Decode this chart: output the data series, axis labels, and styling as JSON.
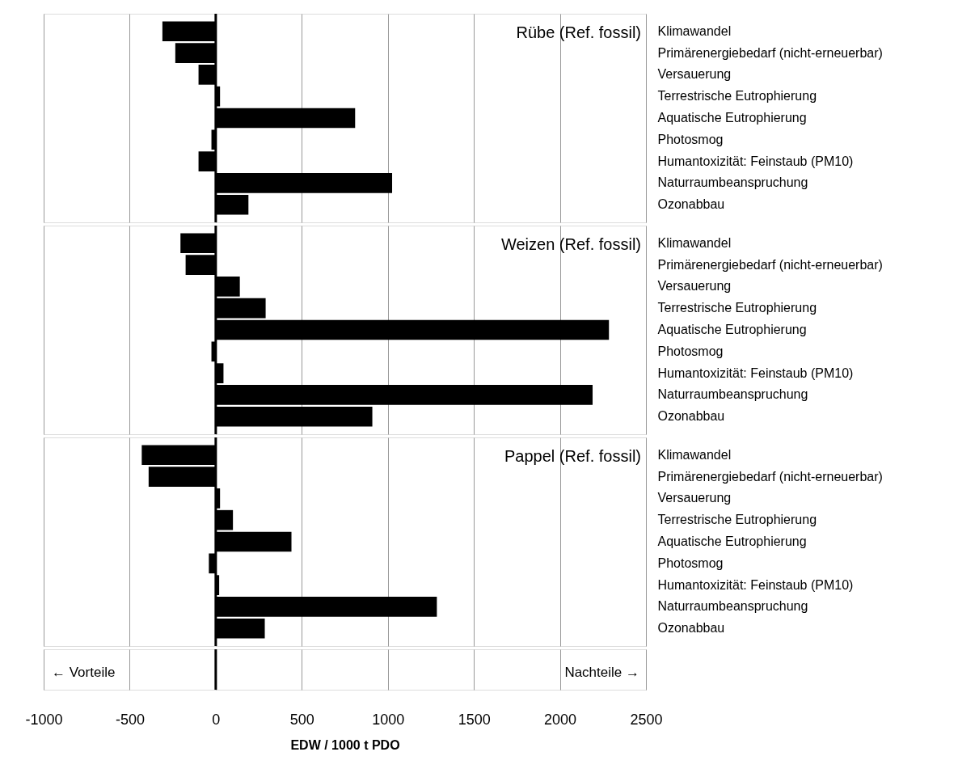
{
  "chart_data": [
    {
      "type": "bar",
      "orientation": "horizontal",
      "title": "Rübe (Ref. fossil)",
      "categories": [
        "Klimawandel",
        "Primärenergiebedarf (nicht-erneuerbar)",
        "Versauerung",
        "Terrestrische Eutrophierung",
        "Aquatische Eutrophierung",
        "Photosmog",
        "Humantoxizität: Feinstaub (PM10)",
        "Naturraumbeanspruchung",
        "Ozonabbau"
      ],
      "values": [
        -310,
        -235,
        -100,
        25,
        810,
        -25,
        -100,
        1025,
        190
      ],
      "color": "#000000",
      "xlim": [
        -1000,
        2500
      ],
      "xticks": [
        -1000,
        -500,
        0,
        500,
        1000,
        1500,
        2000,
        2500
      ],
      "grid": "x",
      "tick_labels": "y",
      "ref_lines": [
        {
          "axis": "x",
          "value": 0,
          "color": "#000000"
        }
      ]
    },
    {
      "type": "bar",
      "orientation": "horizontal",
      "title": "Weizen (Ref. fossil)",
      "categories": [
        "Klimawandel",
        "Primärenergiebedarf (nicht-erneuerbar)",
        "Versauerung",
        "Terrestrische Eutrophierung",
        "Aquatische Eutrophierung",
        "Photosmog",
        "Humantoxizität: Feinstaub (PM10)",
        "Naturraumbeanspruchung",
        "Ozonabbau"
      ],
      "values": [
        -205,
        -175,
        140,
        290,
        2285,
        -25,
        45,
        2190,
        910
      ],
      "color": "#000000",
      "xlim": [
        -1000,
        2500
      ],
      "xticks": [
        -1000,
        -500,
        0,
        500,
        1000,
        1500,
        2000,
        2500
      ],
      "grid": "x",
      "tick_labels": "y",
      "ref_lines": [
        {
          "axis": "x",
          "value": 0,
          "color": "#000000"
        }
      ]
    },
    {
      "type": "bar",
      "orientation": "horizontal",
      "title": "Pappel (Ref. fossil)",
      "categories": [
        "Klimawandel",
        "Primärenergiebedarf (nicht-erneuerbar)",
        "Versauerung",
        "Terrestrische Eutrophierung",
        "Aquatische Eutrophierung",
        "Photosmog",
        "Humantoxizität: Feinstaub (PM10)",
        "Naturraumbeanspruchung",
        "Ozonabbau"
      ],
      "values": [
        -430,
        -390,
        25,
        100,
        440,
        -40,
        20,
        1285,
        285
      ],
      "color": "#000000",
      "xlim": [
        -1000,
        2500
      ],
      "xticks": [
        -1000,
        -500,
        0,
        500,
        1000,
        1500,
        2000,
        2500
      ],
      "grid": "x",
      "xlabel": "EDW / 1000 t PDO",
      "annotations": [
        "← Vorteile",
        "Nachteile →"
      ],
      "ref_lines": [
        {
          "axis": "x",
          "value": 0,
          "color": "#000000"
        }
      ]
    }
  ]
}
